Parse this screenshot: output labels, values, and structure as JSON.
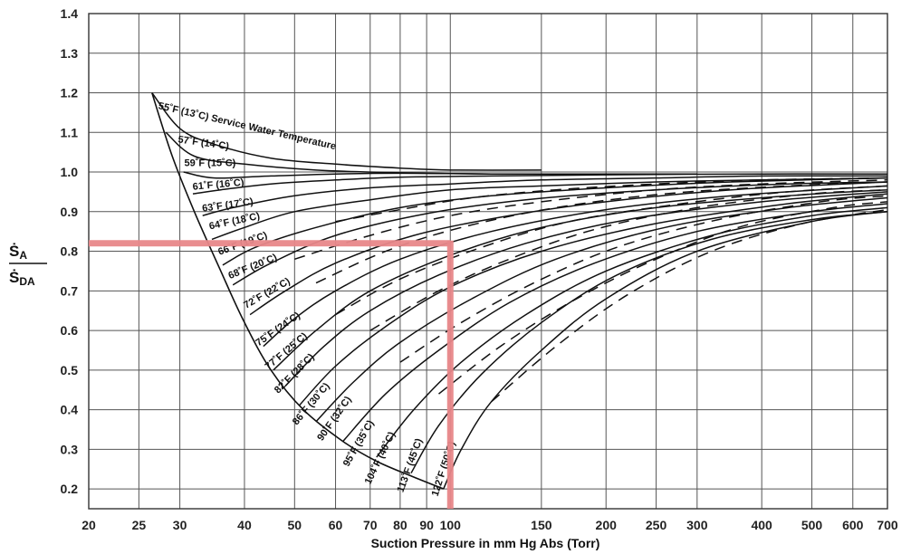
{
  "chart_data": {
    "type": "line",
    "xlabel": "Suction Pressure in mm Hg Abs (Torr)",
    "ylabel_numerator": "Ṡ",
    "ylabel_numerator_sub": "A",
    "ylabel_denominator": "Ṡ",
    "ylabel_denominator_sub": "DA",
    "x_scale": "log",
    "xlim": [
      20,
      700
    ],
    "ylim": [
      0.15,
      1.4
    ],
    "x_ticks": [
      20,
      25,
      30,
      40,
      50,
      60,
      70,
      80,
      90,
      100,
      150,
      200,
      250,
      300,
      400,
      500,
      600,
      700
    ],
    "x_tick_labels": [
      "20",
      "25",
      "30",
      "40",
      "50",
      "60",
      "70",
      "80",
      "90",
      "100",
      "150",
      "200",
      "250",
      "300",
      "400",
      "500",
      "600",
      "700"
    ],
    "y_ticks": [
      0.2,
      0.3,
      0.4,
      0.5,
      0.6,
      0.7,
      0.8,
      0.9,
      1.0,
      1.1,
      1.2,
      1.3,
      1.4
    ],
    "y_tick_labels": [
      "0.2",
      "0.3",
      "0.4",
      "0.5",
      "0.6",
      "0.7",
      "0.8",
      "0.9",
      "1.0",
      "1.1",
      "1.2",
      "1.3",
      "1.4"
    ],
    "grid": true,
    "envelope": {
      "x": [
        26.5,
        29,
        32,
        36,
        40,
        45,
        52,
        62,
        72,
        85,
        97
      ],
      "y": [
        1.2,
        1.04,
        0.9,
        0.75,
        0.62,
        0.5,
        0.4,
        0.32,
        0.27,
        0.23,
        0.2
      ]
    },
    "series": [
      {
        "name": "55˚F (13˚C) Service Water Temperature",
        "label_x": 27.2,
        "label_y": 1.16,
        "label_angle": 13,
        "style": "solid",
        "x": [
          26.5,
          30,
          35,
          45,
          60,
          80,
          100,
          150
        ],
        "y": [
          1.2,
          1.11,
          1.07,
          1.035,
          1.02,
          1.01,
          1.005,
          1.005
        ]
      },
      {
        "name": "57˚F (14˚C)",
        "label_x": 29.7,
        "label_y": 1.075,
        "label_angle": 8,
        "style": "solid",
        "x": [
          28.2,
          32,
          40,
          55,
          80,
          120,
          200,
          300
        ],
        "y": [
          1.1,
          1.04,
          1.02,
          1.005,
          0.998,
          0.995,
          0.995,
          0.995
        ]
      },
      {
        "name": "59˚F (15˚C)",
        "label_x": 30.6,
        "label_y": 1.015,
        "label_angle": 0,
        "style": "solid",
        "x": [
          30.5,
          35,
          45,
          60,
          80,
          120,
          200,
          300
        ],
        "y": [
          1.0,
          0.985,
          0.99,
          0.995,
          0.997,
          0.995,
          0.995,
          0.995
        ]
      },
      {
        "name": "61˚F (16˚C)",
        "label_x": 31.8,
        "label_y": 0.955,
        "label_angle": -5,
        "style": "solid",
        "x": [
          31.8,
          36,
          45,
          60,
          80,
          120,
          200,
          400,
          700
        ],
        "y": [
          0.945,
          0.955,
          0.97,
          0.98,
          0.987,
          0.99,
          0.993,
          0.995,
          0.995
        ]
      },
      {
        "name": "63˚F (17˚C)",
        "label_x": 33.2,
        "label_y": 0.9,
        "label_angle": -8,
        "style": "solid",
        "x": [
          33.2,
          38,
          50,
          70,
          100,
          150,
          250,
          400,
          700
        ],
        "y": [
          0.89,
          0.91,
          0.94,
          0.96,
          0.97,
          0.98,
          0.985,
          0.99,
          0.99
        ]
      },
      {
        "name": "64˚F (18˚C)",
        "label_x": 34.3,
        "label_y": 0.855,
        "label_angle": -12,
        "style": "solid",
        "x": [
          34.6,
          40,
          50,
          70,
          100,
          150,
          250,
          400,
          700
        ],
        "y": [
          0.83,
          0.86,
          0.9,
          0.93,
          0.955,
          0.965,
          0.975,
          0.98,
          0.985
        ]
      },
      {
        "name": "66˚F (19˚C)",
        "label_x": 35.8,
        "label_y": 0.79,
        "label_angle": -20,
        "style": "solid",
        "x": [
          36.3,
          42,
          55,
          80,
          120,
          200,
          350,
          700
        ],
        "y": [
          0.765,
          0.81,
          0.86,
          0.91,
          0.94,
          0.96,
          0.975,
          0.985
        ]
      },
      {
        "name": "68˚F (20˚C)",
        "label_x": 37.5,
        "label_y": 0.73,
        "label_angle": -22,
        "style": "solid",
        "x": [
          38,
          45,
          60,
          90,
          140,
          250,
          450,
          700
        ],
        "y": [
          0.715,
          0.77,
          0.84,
          0.895,
          0.93,
          0.955,
          0.97,
          0.975
        ]
      },
      {
        "name": "72˚F (22˚C)",
        "label_x": 40.3,
        "label_y": 0.655,
        "label_angle": -30,
        "style": "solid",
        "x": [
          41,
          48,
          60,
          85,
          130,
          200,
          350,
          700
        ],
        "y": [
          0.64,
          0.7,
          0.77,
          0.84,
          0.89,
          0.925,
          0.955,
          0.975
        ]
      },
      {
        "name": "75˚F (24˚C)",
        "label_x": 42.6,
        "label_y": 0.56,
        "label_angle": -35,
        "style": "solid",
        "x": [
          43.5,
          50,
          60,
          80,
          120,
          200,
          350,
          700
        ],
        "y": [
          0.56,
          0.63,
          0.7,
          0.78,
          0.85,
          0.905,
          0.94,
          0.965
        ]
      },
      {
        "name": "77˚F (25˚C)",
        "label_x": 44.5,
        "label_y": 0.5,
        "label_angle": -40,
        "style": "solid",
        "x": [
          45.5,
          55,
          70,
          100,
          150,
          250,
          450,
          700
        ],
        "y": [
          0.5,
          0.6,
          0.7,
          0.79,
          0.86,
          0.91,
          0.94,
          0.955
        ]
      },
      {
        "name": "82˚F (28˚C)",
        "label_x": 46.5,
        "label_y": 0.44,
        "label_angle": -45,
        "style": "solid",
        "x": [
          48,
          57,
          70,
          95,
          140,
          220,
          400,
          700
        ],
        "y": [
          0.46,
          0.56,
          0.65,
          0.74,
          0.82,
          0.88,
          0.925,
          0.95
        ]
      },
      {
        "name": "86˚F (30˚C)",
        "label_x": 50.5,
        "label_y": 0.36,
        "label_angle": -50,
        "style": "solid",
        "x": [
          51,
          60,
          75,
          100,
          150,
          250,
          450,
          700
        ],
        "y": [
          0.41,
          0.51,
          0.61,
          0.71,
          0.8,
          0.87,
          0.92,
          0.945
        ]
      },
      {
        "name": "90˚F (32˚C)",
        "label_x": 56.5,
        "label_y": 0.32,
        "label_angle": -55,
        "style": "solid",
        "x": [
          55,
          65,
          80,
          110,
          160,
          260,
          450,
          700
        ],
        "y": [
          0.37,
          0.47,
          0.57,
          0.68,
          0.78,
          0.86,
          0.91,
          0.935
        ]
      },
      {
        "name": "95˚F (35˚C)",
        "label_x": 63.5,
        "label_y": 0.255,
        "label_angle": -60,
        "style": "solid",
        "x": [
          62,
          75,
          95,
          130,
          190,
          300,
          500,
          700
        ],
        "y": [
          0.32,
          0.44,
          0.55,
          0.67,
          0.77,
          0.85,
          0.9,
          0.92
        ]
      },
      {
        "name": "104˚F (40˚C)",
        "label_x": 70,
        "label_y": 0.21,
        "label_angle": -64,
        "style": "solid",
        "x": [
          72,
          85,
          105,
          140,
          200,
          320,
          500,
          700
        ],
        "y": [
          0.28,
          0.4,
          0.52,
          0.64,
          0.75,
          0.84,
          0.89,
          0.91
        ]
      },
      {
        "name": "113˚F (45˚C)",
        "label_x": 81,
        "label_y": 0.19,
        "label_angle": -70,
        "style": "solid",
        "x": [
          84,
          95,
          115,
          150,
          210,
          320,
          500,
          700
        ],
        "y": [
          0.24,
          0.36,
          0.49,
          0.62,
          0.74,
          0.83,
          0.88,
          0.9
        ]
      },
      {
        "name": "122˚F (50˚C)",
        "label_x": 94.5,
        "label_y": 0.18,
        "label_angle": -72,
        "style": "solid",
        "x": [
          97,
          105,
          120,
          150,
          200,
          300,
          500,
          700
        ],
        "y": [
          0.2,
          0.3,
          0.42,
          0.55,
          0.68,
          0.8,
          0.875,
          0.9
        ]
      },
      {
        "name": "",
        "style": "dashed",
        "x": [
          60,
          80,
          110,
          160,
          250,
          400,
          700
        ],
        "y": [
          0.875,
          0.905,
          0.935,
          0.955,
          0.97,
          0.98,
          0.985
        ]
      },
      {
        "name": "",
        "style": "dashed",
        "x": [
          50,
          70,
          100,
          150,
          250,
          400,
          700
        ],
        "y": [
          0.78,
          0.84,
          0.89,
          0.925,
          0.955,
          0.97,
          0.98
        ]
      },
      {
        "name": "",
        "style": "dashed",
        "x": [
          55,
          75,
          105,
          160,
          260,
          450,
          700
        ],
        "y": [
          0.72,
          0.8,
          0.86,
          0.91,
          0.945,
          0.965,
          0.975
        ]
      },
      {
        "name": "",
        "style": "dashed",
        "x": [
          60,
          80,
          115,
          170,
          280,
          450,
          700
        ],
        "y": [
          0.64,
          0.73,
          0.81,
          0.875,
          0.92,
          0.95,
          0.965
        ]
      },
      {
        "name": "",
        "style": "dashed",
        "x": [
          70,
          95,
          130,
          190,
          300,
          500,
          700
        ],
        "y": [
          0.6,
          0.7,
          0.78,
          0.855,
          0.91,
          0.945,
          0.955
        ]
      },
      {
        "name": "",
        "style": "dashed",
        "x": [
          80,
          105,
          145,
          210,
          330,
          520,
          700
        ],
        "y": [
          0.52,
          0.62,
          0.72,
          0.81,
          0.88,
          0.925,
          0.94
        ]
      },
      {
        "name": "",
        "style": "dashed",
        "x": [
          95,
          125,
          170,
          240,
          360,
          550,
          700
        ],
        "y": [
          0.44,
          0.56,
          0.67,
          0.77,
          0.86,
          0.91,
          0.925
        ]
      },
      {
        "name": "",
        "style": "dashed",
        "x": [
          120,
          160,
          220,
          320,
          480,
          700
        ],
        "y": [
          0.42,
          0.56,
          0.69,
          0.8,
          0.87,
          0.905
        ]
      }
    ],
    "marker": {
      "color": "#e8878a",
      "y": 0.82,
      "x": 100,
      "x_start": 20,
      "y_end": 0.15
    }
  }
}
